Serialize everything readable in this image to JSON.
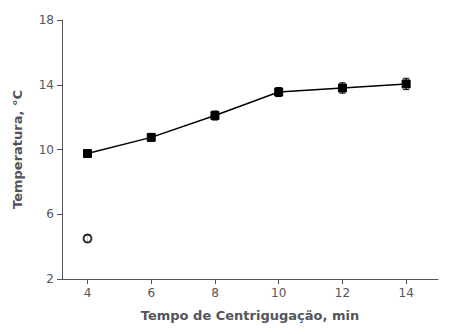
{
  "chart_data": {
    "type": "line",
    "xlabel": "Tempo de Centrigugação, min",
    "ylabel": "Temperatura, °C",
    "xlim": [
      3.2,
      15.0
    ],
    "ylim": [
      2,
      18
    ],
    "xticks": [
      4,
      6,
      8,
      10,
      12,
      14
    ],
    "yticks": [
      2,
      6,
      10,
      14,
      18
    ],
    "grid": false,
    "series": [
      {
        "type": "line",
        "color": "#000000",
        "marker": "square",
        "x": [
          4,
          6,
          8,
          10,
          12,
          14
        ],
        "values": [
          9.75,
          10.75,
          12.1,
          13.55,
          13.8,
          14.05
        ],
        "errors": [
          0.22,
          0.2,
          0.28,
          0.28,
          0.32,
          0.35
        ]
      },
      {
        "type": "scatter",
        "color": "#000000",
        "marker": "open_circle",
        "x": [
          4
        ],
        "values": [
          4.5
        ],
        "errors": [
          0.22
        ]
      }
    ]
  }
}
